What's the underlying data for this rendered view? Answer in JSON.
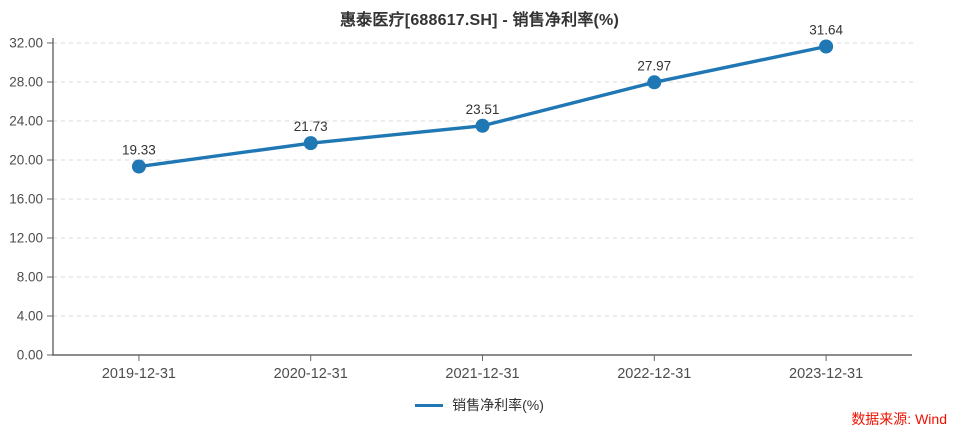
{
  "title": "惠泰医疗[688617.SH] - 销售净利率(%)",
  "source_note": "数据来源: Wind",
  "legend": {
    "label": "销售净利率(%)"
  },
  "colors": {
    "line": "#1F77B4",
    "marker": "#1F77B4",
    "grid": "#d9d9d9",
    "axis": "#666666",
    "tick_text": "#4d4d4d",
    "label_text": "#333333",
    "title_text": "#333333",
    "source_text": "#EE1100"
  },
  "chart_data": {
    "type": "line",
    "title": "惠泰医疗[688617.SH] - 销售净利率(%)",
    "categories": [
      "2019-12-31",
      "2020-12-31",
      "2021-12-31",
      "2022-12-31",
      "2023-12-31"
    ],
    "series": [
      {
        "name": "销售净利率(%)",
        "values": [
          19.33,
          21.73,
          23.51,
          27.97,
          31.64
        ]
      }
    ],
    "data_labels": [
      "19.33",
      "21.73",
      "23.51",
      "27.97",
      "31.64"
    ],
    "ytick_labels": [
      "0.00",
      "4.00",
      "8.00",
      "12.00",
      "16.00",
      "20.00",
      "24.00",
      "28.00",
      "32.00"
    ],
    "xlabel": "",
    "ylabel": "",
    "ylim": [
      0,
      32
    ],
    "ytick_step": 4,
    "grid": true,
    "grid_style": "dashed",
    "legend_position": "bottom"
  }
}
